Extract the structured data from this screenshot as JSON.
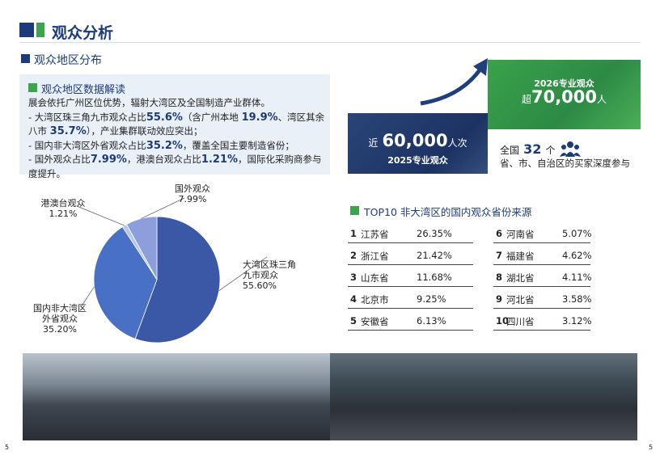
{
  "header": {
    "title": "观众分析",
    "section": "观众地区分布"
  },
  "summary": {
    "title": "观众地区数据解读",
    "intro": "展会依托广州区位优势，辐射大湾区及全国制造产业群体。",
    "bullets": [
      [
        "- 大湾区珠三角九市观众占比",
        "55.6%",
        "（含广州本地 ",
        "19.9%",
        "、湾区其余八市 ",
        "35.7%",
        "），产业集群联动效应突出；"
      ],
      [
        "- 国内非大湾区外省观众占比",
        "35.2%",
        "，覆盖全国主要制造省份；"
      ],
      [
        "- 国外观众占比",
        "7.99%",
        "，港澳台观众占比",
        "1.21%",
        "，国际化采购商参与度提升。"
      ]
    ]
  },
  "chart_data": {
    "type": "pie",
    "categories": [
      "大湾区珠三角九市观众",
      "国内非大湾区外省观众",
      "港澳台观众",
      "国外观众"
    ],
    "values": [
      55.6,
      35.2,
      1.21,
      7.99
    ],
    "value_labels": [
      "55.60%",
      "35.20%",
      "1.21%",
      "7.99%"
    ],
    "colors": [
      "#3a58a6",
      "#4870c4",
      "#b9c6ea",
      "#8c9fdc"
    ]
  },
  "stats": {
    "now": {
      "prefix": "近",
      "number": "60,000",
      "unit": "人次",
      "label": "2025专业观众"
    },
    "target": {
      "label": "2026专业观众",
      "prefix": "超",
      "number": "70,000",
      "unit": "人"
    },
    "regions": {
      "prefix": "全国",
      "number": "32",
      "unit": "个",
      "text": "省、市、自治区的买家深度参与"
    }
  },
  "table": {
    "title": "TOP10 非大湾区的国内观众省份来源",
    "rows": [
      [
        "1",
        "江苏省",
        "26.35%"
      ],
      [
        "2",
        "浙江省",
        "21.42%"
      ],
      [
        "3",
        "山东省",
        "11.68%"
      ],
      [
        "4",
        "北京市",
        "9.25%"
      ],
      [
        "5",
        "安徽省",
        "6.13%"
      ],
      [
        "6",
        "河南省",
        "5.07%"
      ],
      [
        "7",
        "福建省",
        "4.62%"
      ],
      [
        "8",
        "湖北省",
        "4.11%"
      ],
      [
        "9",
        "河北省",
        "3.58%"
      ],
      [
        "10",
        "四川省",
        "3.12%"
      ]
    ]
  },
  "footer": {
    "page_left": "5",
    "page_right": "5"
  }
}
